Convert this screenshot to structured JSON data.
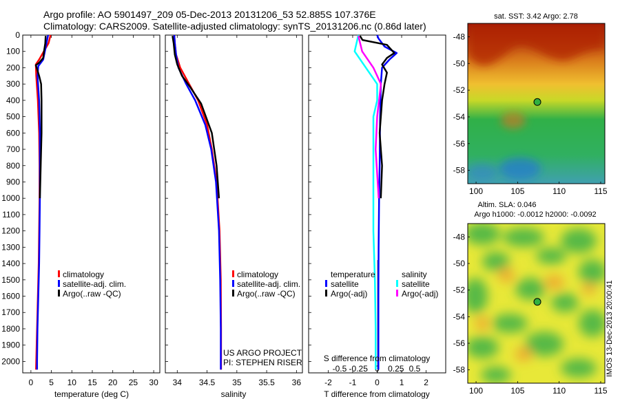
{
  "header": {
    "line1": "Argo profile: AO 5901497_209 05-Dec-2013 20131206_53 52.885S 107.376E",
    "line2": "Climatology: CARS2009. Satellite-adjusted climatology: synTS_20131206.nc (0.86d later)"
  },
  "watermark": "IMOS 13-Dec-2013 20:00:41",
  "colors": {
    "climatology": "#ff0000",
    "satellite": "#0000ff",
    "argo": "#000000",
    "sal_satellite": "#00ffff",
    "sal_argo": "#ff00ff"
  },
  "chart_data": [
    {
      "type": "line",
      "id": "temperature",
      "xlabel": "temperature (deg C)",
      "xlim": [
        -2,
        31.5
      ],
      "ylim": [
        0,
        2070
      ],
      "ylim_reversed": true,
      "yticks": [
        0,
        100,
        200,
        300,
        400,
        500,
        600,
        700,
        800,
        900,
        1000,
        1100,
        1200,
        1300,
        1400,
        1500,
        1600,
        1700,
        1800,
        1900,
        2000
      ],
      "xticks": [
        0,
        5,
        10,
        15,
        20,
        25,
        30
      ],
      "legend": [
        "climatology",
        "satellite-adj. clim.",
        "Argo(..raw -QC)"
      ],
      "series": [
        {
          "name": "climatology",
          "color": "#ff0000",
          "x": [
            4.8,
            4.3,
            2.0,
            1.2,
            1.3,
            1.7,
            2.0,
            2.1,
            2.1,
            2.0,
            1.9,
            1.8,
            1.7,
            1.6,
            1.5,
            1.4,
            1.3,
            1.25
          ],
          "y": [
            0,
            50,
            150,
            180,
            250,
            400,
            600,
            800,
            1000,
            1200,
            1400,
            1500,
            1600,
            1700,
            1800,
            1900,
            2000,
            2050
          ]
        },
        {
          "name": "satellite",
          "color": "#0000ff",
          "x": [
            4.2,
            3.8,
            3.0,
            1.8,
            1.6,
            2.0,
            2.2,
            2.2,
            2.2,
            2.1,
            2.0,
            1.9,
            1.8,
            1.7,
            1.6,
            1.55,
            1.5,
            1.5
          ],
          "y": [
            0,
            50,
            150,
            190,
            250,
            400,
            600,
            800,
            1000,
            1200,
            1400,
            1500,
            1600,
            1700,
            1800,
            1900,
            2000,
            2050
          ]
        },
        {
          "name": "Argo",
          "color": "#000000",
          "x": [
            3.6,
            3.5,
            3.2,
            3.0,
            2.0,
            1.2,
            1.4,
            2.0,
            2.5,
            2.6,
            2.6,
            2.4,
            2.2
          ],
          "y": [
            5,
            50,
            100,
            140,
            170,
            185,
            200,
            250,
            300,
            400,
            600,
            800,
            1000
          ]
        }
      ]
    },
    {
      "type": "line",
      "id": "salinity",
      "xlabel": "salinity",
      "xlim": [
        33.8,
        36.1
      ],
      "ylim": [
        0,
        2070
      ],
      "ylim_reversed": true,
      "xticks": [
        34,
        34.5,
        35,
        35.5,
        36
      ],
      "xtick_labels": [
        "34",
        "34.5",
        "35",
        "35.5",
        "36"
      ],
      "legend": [
        "climatology",
        "satellite-adj. clim.",
        "Argo(..raw -QC)"
      ],
      "project": "US ARGO PROJECT",
      "pi": "PI: STEPHEN RISER",
      "series": [
        {
          "name": "climatology",
          "color": "#ff0000",
          "x": [
            33.95,
            33.96,
            33.98,
            34.05,
            34.2,
            34.35,
            34.5,
            34.58,
            34.66,
            34.71,
            34.73,
            34.735,
            34.735
          ],
          "y": [
            0,
            50,
            120,
            200,
            300,
            400,
            550,
            700,
            900,
            1200,
            1500,
            1800,
            2050
          ]
        },
        {
          "name": "satellite",
          "color": "#0000ff",
          "x": [
            33.95,
            33.96,
            33.98,
            34.02,
            34.15,
            34.3,
            34.47,
            34.57,
            34.65,
            34.7,
            34.72,
            34.73,
            34.73
          ],
          "y": [
            0,
            50,
            120,
            200,
            300,
            400,
            550,
            700,
            900,
            1200,
            1500,
            1800,
            2050
          ]
        },
        {
          "name": "Argo",
          "color": "#000000",
          "x": [
            33.92,
            33.94,
            33.96,
            34.0,
            34.08,
            34.22,
            34.4,
            34.58,
            34.66,
            34.7
          ],
          "y": [
            5,
            50,
            120,
            180,
            250,
            320,
            420,
            600,
            800,
            1000
          ]
        }
      ]
    },
    {
      "type": "line",
      "id": "difference",
      "xlabel": "T difference from climatology",
      "xlabel_top": "S difference from climatology",
      "xlim": [
        -2.8,
        2.8
      ],
      "ylim": [
        0,
        2070
      ],
      "ylim_reversed": true,
      "xticks": [
        -2,
        -1,
        0,
        1,
        2
      ],
      "xticks_top": [
        -0.5,
        -0.25,
        0,
        0.25,
        0.5
      ],
      "xtick_labels_top": [
        "-0.5",
        "-0.25",
        "0",
        "0.25",
        "0.5"
      ],
      "legend_titles": [
        "temperature",
        "salinity"
      ],
      "legend": [
        "satellite",
        "Argo(-adj)",
        "satellite",
        "Argo(-adj)"
      ],
      "series": [
        {
          "name": "T satellite",
          "color": "#0000ff",
          "x": [
            0.0,
            0.05,
            0.3,
            0.8,
            0.5,
            0.2,
            0.15,
            0.12,
            0.1,
            0.08,
            0.06,
            0.05,
            0.05,
            0.05
          ],
          "y": [
            0,
            20,
            70,
            110,
            150,
            200,
            300,
            500,
            800,
            1000,
            1300,
            1600,
            1900,
            2050
          ]
        },
        {
          "name": "T Argo",
          "color": "#000000",
          "x": [
            -0.7,
            -0.6,
            0.4,
            0.7,
            0.4,
            0.2,
            0.4,
            0.3,
            0.2,
            0.1,
            0.2,
            0.15
          ],
          "y": [
            5,
            30,
            60,
            110,
            140,
            180,
            230,
            300,
            400,
            600,
            800,
            1000
          ]
        },
        {
          "name": "S satellite",
          "color": "#00ffff",
          "x": [
            -0.25,
            -0.3,
            -0.15,
            0.0,
            0.0,
            -0.05,
            -0.05,
            -0.05,
            -0.05,
            -0.03,
            -0.02,
            -0.02
          ],
          "y": [
            0,
            100,
            200,
            300,
            400,
            500,
            700,
            1000,
            1200,
            1500,
            1800,
            2050
          ]
        },
        {
          "name": "S Argo",
          "color": "#ff00ff",
          "x": [
            -0.25,
            -0.2,
            -0.05,
            0.05,
            0.0,
            -0.02,
            0.02
          ],
          "y": [
            5,
            100,
            200,
            300,
            500,
            700,
            1000
          ]
        }
      ]
    },
    {
      "type": "heatmap",
      "id": "sst-map",
      "title": "sat. SST: 3.42 Argo: 2.78",
      "xlim": [
        99,
        115.5
      ],
      "ylim": [
        -59,
        -47
      ],
      "xticks": [
        100,
        105,
        110,
        115
      ],
      "yticks": [
        -48,
        -50,
        -52,
        -54,
        -56,
        -58
      ],
      "marker": {
        "lon": 107.376,
        "lat": -52.885
      }
    },
    {
      "type": "heatmap",
      "id": "sla-map",
      "title": "Altim. SLA: 0.046",
      "subtitle": "Argo h1000: -0.0012 h2000: -0.0092",
      "xlim": [
        99,
        115.5
      ],
      "ylim": [
        -59,
        -47
      ],
      "xticks": [
        100,
        105,
        110,
        115
      ],
      "yticks": [
        -48,
        -50,
        -52,
        -54,
        -56,
        -58
      ],
      "marker": {
        "lon": 107.376,
        "lat": -52.885
      }
    }
  ]
}
